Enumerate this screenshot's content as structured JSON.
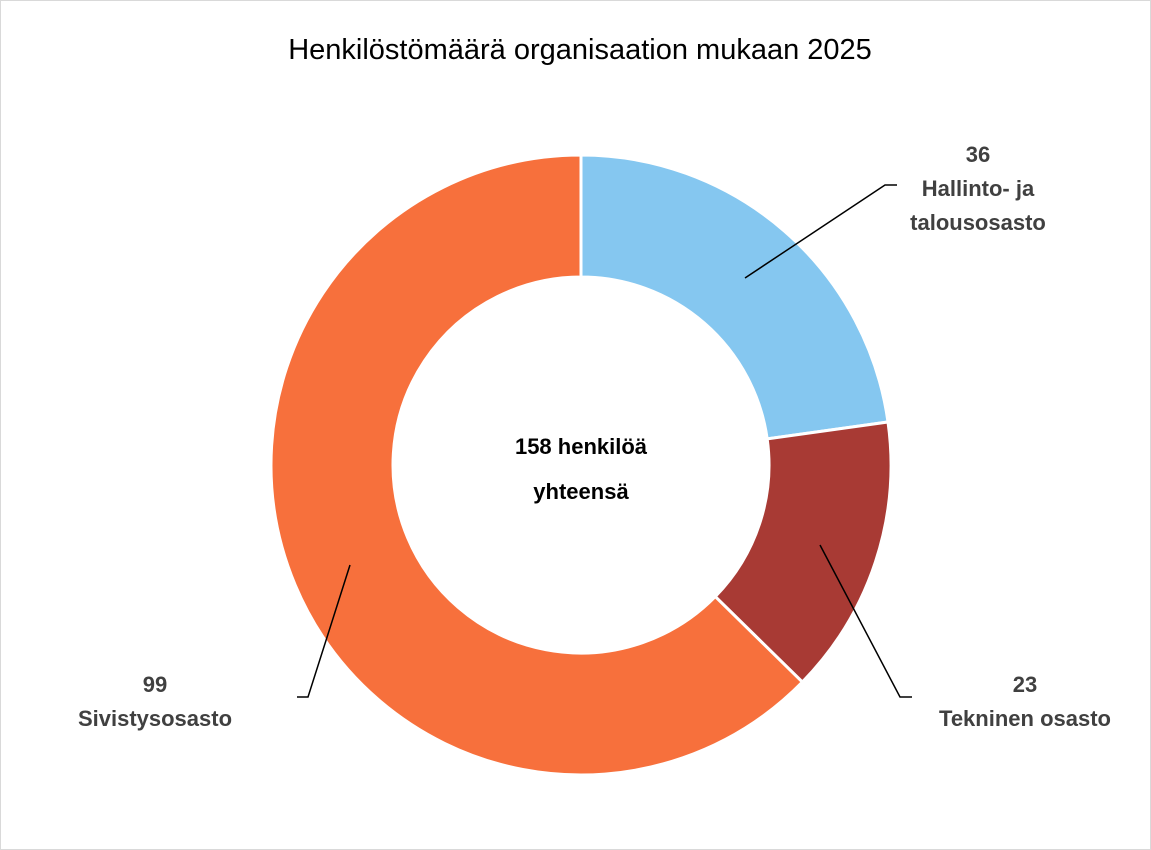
{
  "chart_data": {
    "type": "donut",
    "title": "Henkilöstömäärä organisaation mukaan 2025",
    "categories": [
      "Hallinto- ja talousosasto",
      "Tekninen osasto",
      "Sivistysosasto"
    ],
    "values": [
      36,
      23,
      99
    ],
    "colors": [
      "#85c7f0",
      "#a83a34",
      "#f7703c"
    ],
    "center_label": [
      "158 henkilöä",
      "yhteensä"
    ]
  }
}
